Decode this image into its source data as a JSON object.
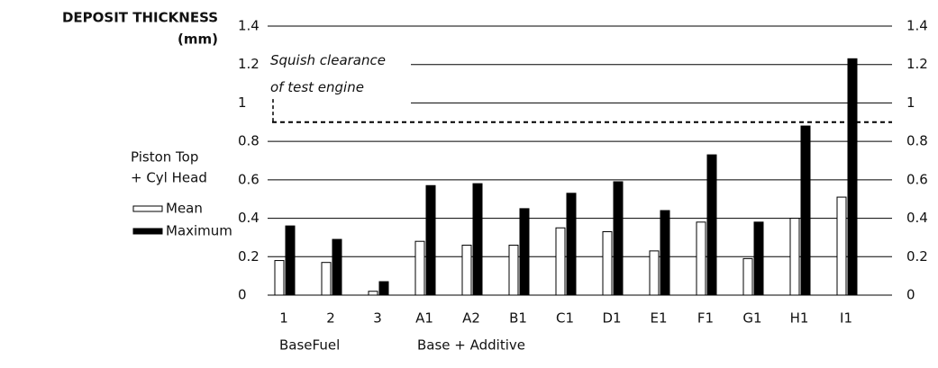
{
  "chart_data": {
    "type": "bar",
    "title_lines": [
      "DEPOSIT THICKNESS",
      "(mm)"
    ],
    "legend_title_lines": [
      "Piston Top",
      "+ Cyl Head"
    ],
    "categories": [
      "1",
      "2",
      "3",
      "A1",
      "A2",
      "B1",
      "C1",
      "D1",
      "E1",
      "F1",
      "G1",
      "H1",
      "I1"
    ],
    "group_labels": [
      "BaseFuel",
      "Base + Additive"
    ],
    "series": [
      {
        "name": "Mean",
        "color": "#ffffff",
        "values": [
          0.18,
          0.17,
          0.02,
          0.28,
          0.26,
          0.26,
          0.35,
          0.33,
          0.23,
          0.38,
          0.19,
          0.4,
          0.51
        ]
      },
      {
        "name": "Maximum",
        "color": "#000000",
        "values": [
          0.36,
          0.29,
          0.07,
          0.57,
          0.58,
          0.45,
          0.53,
          0.59,
          0.44,
          0.73,
          0.38,
          0.88,
          1.23
        ]
      }
    ],
    "ylim": [
      0,
      1.4
    ],
    "yticks": [
      0,
      0.2,
      0.4,
      0.6,
      0.8,
      1,
      1.2,
      1.4
    ],
    "y2lim": [
      0,
      1.4
    ],
    "y2ticks": [
      0,
      0.2,
      0.4,
      0.6,
      0.8,
      1,
      1.2,
      1.4
    ],
    "grid": true,
    "reference_line": {
      "value": 0.9,
      "label_lines": [
        "Squish clearance",
        "of test engine"
      ]
    }
  }
}
